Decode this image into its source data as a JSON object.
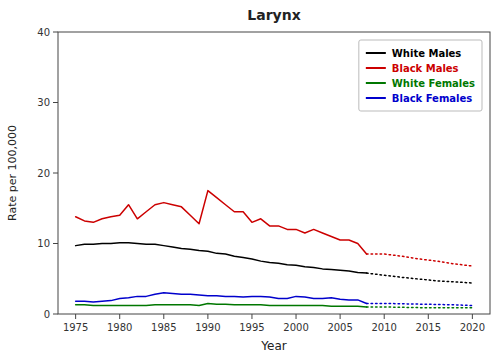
{
  "chart_data": {
    "type": "line",
    "title": "Larynx",
    "x_label": "Year",
    "y_label": "Rate per 100,000",
    "xlim": [
      1973,
      2022
    ],
    "ylim": [
      0,
      40
    ],
    "xticks": [
      1975,
      1980,
      1985,
      1990,
      1995,
      2000,
      2005,
      2010,
      2015,
      2020
    ],
    "yticks": [
      0,
      10,
      20,
      30,
      40
    ],
    "grid": false,
    "legend": "upper right",
    "series": [
      {
        "name": "White Males",
        "color": "#000000",
        "line_style": "solid",
        "x": [
          1975,
          1976,
          1977,
          1978,
          1979,
          1980,
          1981,
          1982,
          1983,
          1984,
          1985,
          1986,
          1987,
          1988,
          1989,
          1990,
          1991,
          1992,
          1993,
          1994,
          1995,
          1996,
          1997,
          1998,
          1999,
          2000,
          2001,
          2002,
          2003,
          2004,
          2005,
          2006,
          2007,
          2008
        ],
        "values": [
          9.7,
          9.9,
          9.9,
          10.0,
          10.0,
          10.1,
          10.1,
          10.0,
          9.9,
          9.9,
          9.7,
          9.5,
          9.3,
          9.2,
          9.0,
          8.9,
          8.6,
          8.5,
          8.2,
          8.0,
          7.8,
          7.5,
          7.3,
          7.2,
          7.0,
          6.9,
          6.7,
          6.6,
          6.4,
          6.3,
          6.2,
          6.1,
          5.9,
          5.8
        ]
      },
      {
        "name": "Black Males",
        "color": "#cc0000",
        "line_style": "solid",
        "x": [
          1975,
          1976,
          1977,
          1978,
          1979,
          1980,
          1981,
          1982,
          1983,
          1984,
          1985,
          1986,
          1987,
          1988,
          1989,
          1990,
          1991,
          1992,
          1993,
          1994,
          1995,
          1996,
          1997,
          1998,
          1999,
          2000,
          2001,
          2002,
          2003,
          2004,
          2005,
          2006,
          2007,
          2008
        ],
        "values": [
          13.8,
          13.2,
          13.0,
          13.5,
          13.8,
          14.0,
          15.5,
          13.5,
          14.5,
          15.5,
          15.8,
          15.5,
          15.2,
          14.0,
          12.8,
          17.5,
          16.5,
          15.5,
          14.5,
          14.5,
          13.0,
          13.5,
          12.5,
          12.5,
          12.0,
          12.0,
          11.5,
          12.0,
          11.5,
          11.0,
          10.5,
          10.5,
          10.0,
          8.5
        ]
      },
      {
        "name": "White Females",
        "color": "#007700",
        "line_style": "solid",
        "x": [
          1975,
          1976,
          1977,
          1978,
          1979,
          1980,
          1981,
          1982,
          1983,
          1984,
          1985,
          1986,
          1987,
          1988,
          1989,
          1990,
          1991,
          1992,
          1993,
          1994,
          1995,
          1996,
          1997,
          1998,
          1999,
          2000,
          2001,
          2002,
          2003,
          2004,
          2005,
          2006,
          2007,
          2008
        ],
        "values": [
          1.3,
          1.3,
          1.2,
          1.2,
          1.2,
          1.2,
          1.2,
          1.2,
          1.2,
          1.3,
          1.3,
          1.3,
          1.3,
          1.3,
          1.2,
          1.5,
          1.4,
          1.4,
          1.3,
          1.3,
          1.3,
          1.3,
          1.2,
          1.2,
          1.2,
          1.2,
          1.2,
          1.2,
          1.2,
          1.1,
          1.1,
          1.1,
          1.1,
          1.0
        ]
      },
      {
        "name": "Black Females",
        "color": "#0000cc",
        "line_style": "solid",
        "x": [
          1975,
          1976,
          1977,
          1978,
          1979,
          1980,
          1981,
          1982,
          1983,
          1984,
          1985,
          1986,
          1987,
          1988,
          1989,
          1990,
          1991,
          1992,
          1993,
          1994,
          1995,
          1996,
          1997,
          1998,
          1999,
          2000,
          2001,
          2002,
          2003,
          2004,
          2005,
          2006,
          2007,
          2008
        ],
        "values": [
          1.8,
          1.8,
          1.7,
          1.8,
          1.9,
          2.2,
          2.3,
          2.5,
          2.5,
          2.8,
          3.0,
          2.9,
          2.8,
          2.8,
          2.7,
          2.6,
          2.6,
          2.5,
          2.5,
          2.4,
          2.5,
          2.5,
          2.4,
          2.2,
          2.2,
          2.5,
          2.4,
          2.2,
          2.2,
          2.3,
          2.1,
          2.0,
          2.0,
          1.5
        ]
      },
      {
        "color": "#000000",
        "line_style": "dotted",
        "x": [
          2008,
          2010,
          2012,
          2014,
          2016,
          2018,
          2020
        ],
        "values": [
          5.8,
          5.5,
          5.2,
          4.95,
          4.7,
          4.55,
          4.4
        ]
      },
      {
        "color": "#cc0000",
        "line_style": "dotted",
        "x": [
          2008,
          2010,
          2012,
          2014,
          2016,
          2018,
          2020
        ],
        "values": [
          8.5,
          8.5,
          8.2,
          7.8,
          7.5,
          7.1,
          6.8
        ]
      },
      {
        "color": "#007700",
        "line_style": "dotted",
        "x": [
          2008,
          2010,
          2012,
          2014,
          2016,
          2018,
          2020
        ],
        "values": [
          1.0,
          1.0,
          0.95,
          0.9,
          0.9,
          0.9,
          0.9
        ]
      },
      {
        "color": "#0000cc",
        "line_style": "dotted",
        "x": [
          2008,
          2010,
          2012,
          2014,
          2016,
          2018,
          2020
        ],
        "values": [
          1.5,
          1.5,
          1.45,
          1.4,
          1.35,
          1.3,
          1.2
        ]
      }
    ]
  }
}
